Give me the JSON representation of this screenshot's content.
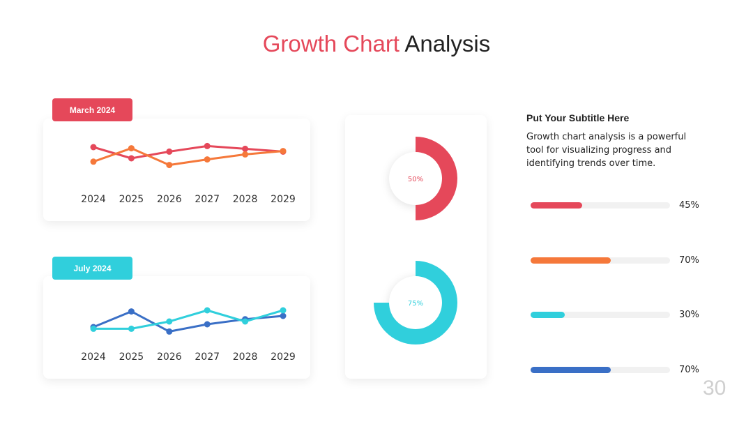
{
  "title": {
    "accent": "Growth Chart",
    "rest": "Analysis"
  },
  "page_number": "30",
  "side": {
    "subtitle": "Put Your Subtitle Here",
    "description": "Growth chart analysis is a powerful tool for visualizing progress and identifying trends over time."
  },
  "colors": {
    "red": "#e5485a",
    "orange": "#f5783a",
    "cyan": "#30cfdc",
    "blue": "#3a6fc6"
  },
  "chart_data": [
    {
      "type": "line",
      "label": "March 2024",
      "categories": [
        "2024",
        "2025",
        "2026",
        "2027",
        "2028",
        "2029"
      ],
      "series": [
        {
          "color": "#e5485a",
          "values": [
            80,
            60,
            72,
            82,
            77,
            72
          ]
        },
        {
          "color": "#f5783a",
          "values": [
            54,
            78,
            48,
            58,
            67,
            73
          ]
        }
      ],
      "ylim": [
        0,
        100
      ]
    },
    {
      "type": "line",
      "label": "July 2024",
      "categories": [
        "2024",
        "2025",
        "2026",
        "2027",
        "2028",
        "2029"
      ],
      "series": [
        {
          "color": "#3a6fc6",
          "values": [
            40,
            68,
            32,
            45,
            54,
            60
          ]
        },
        {
          "color": "#30cfdc",
          "values": [
            37,
            37,
            50,
            70,
            50,
            70
          ]
        }
      ],
      "ylim": [
        0,
        100
      ]
    },
    {
      "type": "pie",
      "label": "50%",
      "value": 50,
      "color": "#e5485a"
    },
    {
      "type": "pie",
      "label": "75%",
      "value": 75,
      "color": "#30cfdc"
    },
    {
      "type": "bar",
      "orientation": "horizontal",
      "values": [
        45,
        70,
        30,
        70
      ],
      "labels": [
        "45%",
        "70%",
        "30%",
        "70%"
      ],
      "colors": [
        "#e5485a",
        "#f5783a",
        "#30cfdc",
        "#3a6fc6"
      ],
      "xlim": [
        0,
        100
      ]
    }
  ]
}
